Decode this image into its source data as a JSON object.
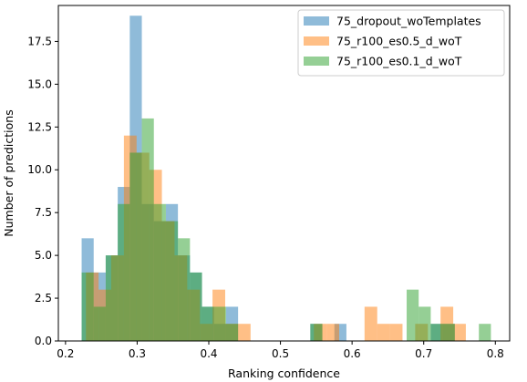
{
  "chart_data": {
    "type": "bar",
    "title": "",
    "xlabel": "Ranking confidence",
    "ylabel": "Number of predictions",
    "xlim": [
      0.19,
      0.82
    ],
    "ylim": [
      0,
      19.6
    ],
    "xticks": [
      0.2,
      0.3,
      0.4,
      0.5,
      0.6,
      0.7,
      0.8
    ],
    "xtick_labels": [
      "0.2",
      "0.3",
      "0.4",
      "0.5",
      "0.6",
      "0.7",
      "0.8"
    ],
    "yticks": [
      0,
      2.5,
      5,
      7.5,
      10,
      12.5,
      15,
      17.5
    ],
    "ytick_labels": [
      "0.0",
      "2.5",
      "5.0",
      "7.5",
      "10.0",
      "12.5",
      "15.0",
      "17.5"
    ],
    "grid": false,
    "legend_position": "top-right",
    "series": [
      {
        "name": "75_dropout_woTemplates",
        "color": "#1f77b4",
        "bins": [
          [
            0.2225,
            0.2393,
            6
          ],
          [
            0.2393,
            0.2561,
            4
          ],
          [
            0.2561,
            0.2729,
            5
          ],
          [
            0.2729,
            0.2897,
            9
          ],
          [
            0.2897,
            0.3065,
            19
          ],
          [
            0.3065,
            0.3233,
            8
          ],
          [
            0.3233,
            0.3401,
            7
          ],
          [
            0.3401,
            0.3569,
            8
          ],
          [
            0.3569,
            0.3737,
            5
          ],
          [
            0.3737,
            0.3905,
            4
          ],
          [
            0.3905,
            0.4073,
            2
          ],
          [
            0.4073,
            0.4241,
            1
          ],
          [
            0.4241,
            0.4409,
            2
          ],
          [
            0.5249,
            0.5417,
            0
          ],
          [
            0.5417,
            0.5585,
            1
          ],
          [
            0.5753,
            0.5921,
            1
          ],
          [
            0.7098,
            0.7266,
            1
          ],
          [
            0.7266,
            0.7434,
            1
          ]
        ]
      },
      {
        "name": "75_r100_es0.5_d_woT",
        "color": "#ff7f0e",
        "bins": [
          [
            0.2285,
            0.2462,
            4
          ],
          [
            0.2462,
            0.2638,
            3
          ],
          [
            0.2638,
            0.2815,
            5
          ],
          [
            0.2815,
            0.2992,
            12
          ],
          [
            0.2992,
            0.3169,
            11
          ],
          [
            0.3169,
            0.3345,
            10
          ],
          [
            0.3345,
            0.3522,
            7
          ],
          [
            0.3522,
            0.3699,
            5
          ],
          [
            0.3699,
            0.3876,
            3
          ],
          [
            0.3876,
            0.4052,
            1
          ],
          [
            0.4052,
            0.4229,
            3
          ],
          [
            0.4229,
            0.4406,
            1
          ],
          [
            0.4406,
            0.4583,
            1
          ],
          [
            0.5467,
            0.5644,
            1
          ],
          [
            0.5644,
            0.582,
            1
          ],
          [
            0.6174,
            0.6351,
            2
          ],
          [
            0.6351,
            0.6528,
            1
          ],
          [
            0.6528,
            0.6704,
            1
          ],
          [
            0.6881,
            0.7058,
            1
          ],
          [
            0.7235,
            0.7412,
            2
          ],
          [
            0.7412,
            0.7588,
            1
          ]
        ]
      },
      {
        "name": "75_r100_es0.1_d_woT",
        "color": "#2ca02c",
        "bins": [
          [
            0.2225,
            0.2393,
            4
          ],
          [
            0.2393,
            0.2561,
            2
          ],
          [
            0.2561,
            0.2729,
            5
          ],
          [
            0.2729,
            0.2897,
            8
          ],
          [
            0.2897,
            0.3065,
            11
          ],
          [
            0.3065,
            0.3233,
            13
          ],
          [
            0.3233,
            0.3401,
            8
          ],
          [
            0.3401,
            0.3569,
            7
          ],
          [
            0.3569,
            0.3737,
            6
          ],
          [
            0.3737,
            0.3905,
            4
          ],
          [
            0.3905,
            0.4073,
            2
          ],
          [
            0.4073,
            0.4241,
            2
          ],
          [
            0.4241,
            0.4409,
            1
          ],
          [
            0.5417,
            0.5585,
            1
          ],
          [
            0.6762,
            0.693,
            3
          ],
          [
            0.693,
            0.7098,
            2
          ],
          [
            0.7098,
            0.7266,
            1
          ],
          [
            0.7266,
            0.7434,
            1
          ],
          [
            0.777,
            0.7938,
            1
          ]
        ]
      }
    ]
  }
}
